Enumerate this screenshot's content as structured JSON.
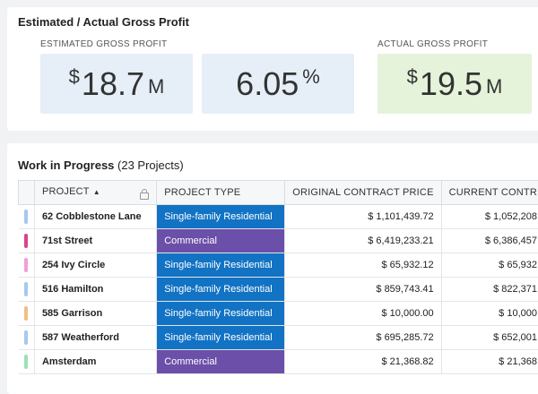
{
  "kpi": {
    "title": "Estimated / Actual Gross Profit",
    "estimated_label": "ESTIMATED GROSS PROFIT",
    "actual_label": "ACTUAL GROSS PROFIT",
    "currency_symbol": "$",
    "estimated_value": "18.7",
    "estimated_unit": "M",
    "estimated_percent": "6.05",
    "percent_symbol": "%",
    "actual_value": "19.5",
    "actual_unit": "M",
    "colors": {
      "estimated_bg": "#e6eff8",
      "actual_bg": "#e5f3da"
    }
  },
  "wip": {
    "title": "Work in Progress",
    "count_text": "(23 Projects)",
    "columns": [
      "PROJECT",
      "PROJECT TYPE",
      "ORIGINAL CONTRACT PRICE",
      "CURRENT CONTR"
    ],
    "sort_icon": "sort-asc-icon",
    "lock_icon": "lock-icon",
    "rows": [
      {
        "color": "#a7c7ee",
        "project": "62 Cobblestone Lane",
        "type": "Single-family Residential",
        "type_key": "sfr",
        "original": "$ 1,101,439.72",
        "current": "$ 1,052,208"
      },
      {
        "color": "#d9448f",
        "project": "71st Street",
        "type": "Commercial",
        "type_key": "com",
        "original": "$ 6,419,233.21",
        "current": "$ 6,386,457"
      },
      {
        "color": "#efa0d8",
        "project": "254 Ivy Circle",
        "type": "Single-family Residential",
        "type_key": "sfr",
        "original": "$ 65,932.12",
        "current": "$ 65,932"
      },
      {
        "color": "#a7c7ee",
        "project": "516 Hamilton",
        "type": "Single-family Residential",
        "type_key": "sfr",
        "original": "$ 859,743.41",
        "current": "$ 822,371"
      },
      {
        "color": "#f2bd86",
        "project": "585 Garrison",
        "type": "Single-family Residential",
        "type_key": "sfr",
        "original": "$ 10,000.00",
        "current": "$ 10,000"
      },
      {
        "color": "#a7c7ee",
        "project": "587 Weatherford",
        "type": "Single-family Residential",
        "type_key": "sfr",
        "original": "$ 695,285.72",
        "current": "$ 652,001"
      },
      {
        "color": "#9ee0b6",
        "project": "Amsterdam",
        "type": "Commercial",
        "type_key": "com",
        "original": "$ 21,368.82",
        "current": "$ 21,368"
      }
    ],
    "type_colors": {
      "sfr": "#1273c4",
      "com": "#6b4fa8"
    }
  }
}
